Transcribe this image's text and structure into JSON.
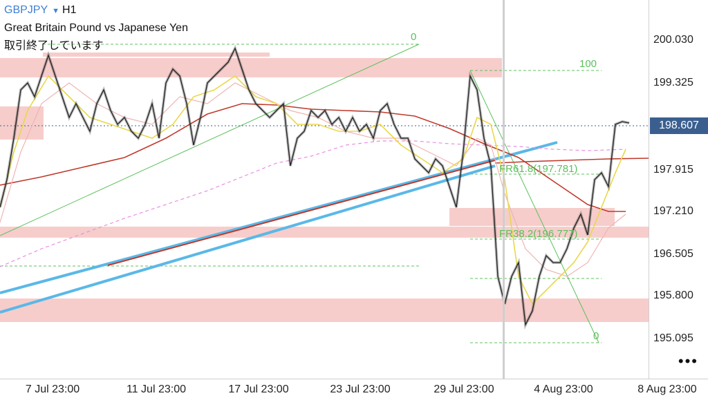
{
  "header": {
    "symbol": "GBPJPY",
    "dropdown_icon": "triangle-down-icon",
    "timeframe": "H1",
    "description": "Great Britain Pound vs Japanese Yen",
    "status": "取引終了しています"
  },
  "price_axis": {
    "labels": [
      "200.030",
      "199.325",
      "198.607",
      "197.915",
      "197.210",
      "196.505",
      "195.800",
      "195.095"
    ],
    "current_price": "198.607",
    "current_price_color": "#3a5f8f"
  },
  "time_axis": {
    "labels": [
      "7 Jul 23:00",
      "11 Jul 23:00",
      "17 Jul 23:00",
      "23 Jul 23:00",
      "29 Jul 23:00",
      "4 Aug 23:00",
      "8 Aug 23:00"
    ]
  },
  "fib_upper": {
    "level_0": "0",
    "level_100": "100",
    "color": "#5cc05c"
  },
  "fib_lower": {
    "level_0": "0",
    "fr61": "FR61.8(197.781)",
    "fr38": "FR38.2(196.777)",
    "color": "#5cc05c"
  },
  "menu": {
    "more_icon": "more-dots-icon",
    "label": "•••"
  },
  "colors": {
    "zone": "#f2b8b6",
    "ma_red": "#c0392b",
    "ma_yellow": "#e8d84a",
    "ma_pink": "#e88ee0",
    "trend_blue": "#5ab8e8",
    "fib_green": "#5cc05c"
  }
}
